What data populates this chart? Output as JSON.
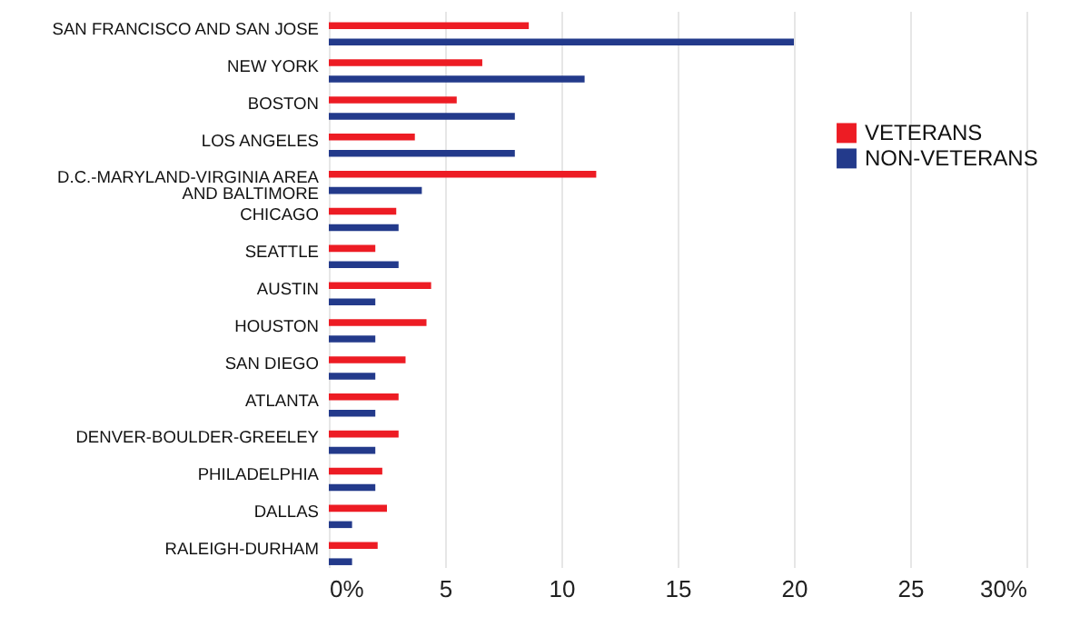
{
  "chart_data": {
    "type": "bar",
    "orientation": "horizontal",
    "categories": [
      "SAN FRANCISCO AND SAN JOSE",
      "NEW YORK",
      "BOSTON",
      "LOS ANGELES",
      "D.C.-MARYLAND-VIRGINIA AREA\nAND BALTIMORE",
      "CHICAGO",
      "SEATTLE",
      "AUSTIN",
      "HOUSTON",
      "SAN DIEGO",
      "ATLANTA",
      "DENVER-BOULDER-GREELEY",
      "PHILADELPHIA",
      "DALLAS",
      "RALEIGH-DURHAM"
    ],
    "series": [
      {
        "name": "VETERANS",
        "color": "#ed1c24",
        "values": [
          8.6,
          6.6,
          5.5,
          3.7,
          11.5,
          2.9,
          2.0,
          4.4,
          4.2,
          3.3,
          3.0,
          3.0,
          2.3,
          2.5,
          2.1
        ]
      },
      {
        "name": "NON-VETERANS",
        "color": "#233a8b",
        "values": [
          20.0,
          11.0,
          8.0,
          8.0,
          4.0,
          3.0,
          3.0,
          2.0,
          2.0,
          2.0,
          2.0,
          2.0,
          2.0,
          1.0,
          1.0
        ]
      }
    ],
    "xlim": [
      0,
      30
    ],
    "xticks": [
      {
        "value": 0,
        "label": "0%"
      },
      5,
      10,
      15,
      20,
      25,
      {
        "value": 30,
        "label": "30%"
      }
    ],
    "grid": "x",
    "legend": "right"
  }
}
